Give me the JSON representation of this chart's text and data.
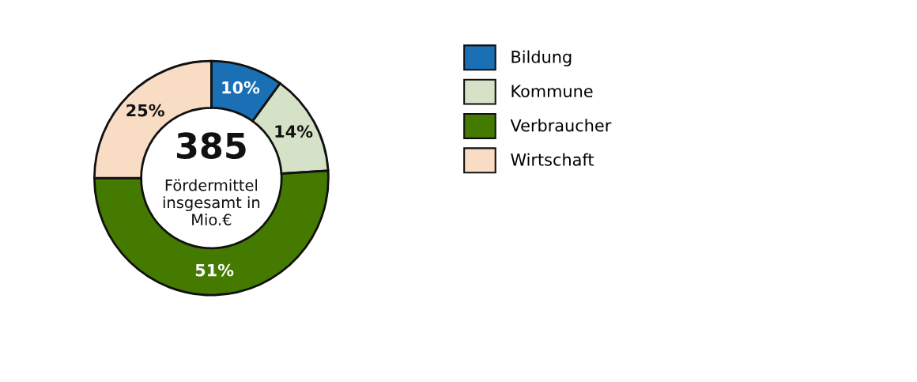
{
  "chart_data": {
    "type": "donut",
    "categories": [
      "Bildung",
      "Kommune",
      "Verbraucher",
      "Wirtschaft"
    ],
    "values": [
      10,
      14,
      51,
      25
    ],
    "colors": [
      "#1a6fb5",
      "#d6e2c7",
      "#457a00",
      "#f9dcc4"
    ],
    "value_labels": [
      "10%",
      "14%",
      "51%",
      "25%"
    ],
    "annotations": [
      "385",
      "Fördermittel\ninsgesamt in\nMio.€"
    ],
    "legend": "right"
  }
}
